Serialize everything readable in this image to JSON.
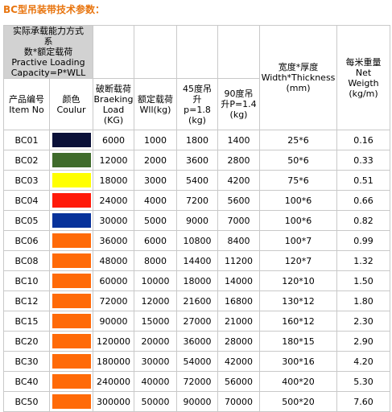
{
  "title": "BC型吊装带技术参数：",
  "header": {
    "capacity_method": [
      "实际承载能力方式",
      "系",
      "数*额定载荷",
      "Practive Loading",
      "Capacity=P*WLL"
    ],
    "width_thickness": [
      "宽度*厚度",
      "Width*Thickness",
      "(mm)"
    ],
    "weight_per_meter": [
      "每米重量",
      "Net",
      "Weigth",
      "(kg/m)"
    ],
    "item_no": [
      "产品编号",
      "Item No"
    ],
    "colour": [
      "颜色",
      "Coulur"
    ],
    "breaking_load": [
      "破断载荷",
      "Braeking",
      "Load",
      "(KG)"
    ],
    "wll": [
      "额定载荷",
      "Wll(kg)"
    ],
    "p18": [
      "45度吊",
      "升",
      "p=1.8",
      "(kg)"
    ],
    "p14": [
      "90度吊",
      "升P=1.4",
      "(kg)"
    ]
  },
  "rows": [
    {
      "item": "BC01",
      "color": "#0a1038",
      "breaking": "6000",
      "wll": "1000",
      "p18": "1800",
      "p14": "1400",
      "size": "25*6",
      "weight": "0.16"
    },
    {
      "item": "BC02",
      "color": "#3f6b2b",
      "breaking": "12000",
      "wll": "2000",
      "p18": "3600",
      "p14": "2800",
      "size": "50*6",
      "weight": "0.33"
    },
    {
      "item": "BC03",
      "color": "#ffff00",
      "breaking": "18000",
      "wll": "3000",
      "p18": "5400",
      "p14": "4200",
      "size": "75*6",
      "weight": "0.51"
    },
    {
      "item": "BC04",
      "color": "#ff1a0a",
      "breaking": "24000",
      "wll": "4000",
      "p18": "7200",
      "p14": "5600",
      "size": "100*6",
      "weight": "0.66"
    },
    {
      "item": "BC05",
      "color": "#08329a",
      "breaking": "30000",
      "wll": "5000",
      "p18": "9000",
      "p14": "7000",
      "size": "100*6",
      "weight": "0.82"
    },
    {
      "item": "BC06",
      "color": "#ff6a08",
      "breaking": "36000",
      "wll": "6000",
      "p18": "10800",
      "p14": "8400",
      "size": "100*7",
      "weight": "0.99"
    },
    {
      "item": "BC08",
      "color": "#ff6a08",
      "breaking": "48000",
      "wll": "8000",
      "p18": "14400",
      "p14": "11200",
      "size": "120*7",
      "weight": "1.32"
    },
    {
      "item": "BC10",
      "color": "#ff6a08",
      "breaking": "60000",
      "wll": "10000",
      "p18": "18000",
      "p14": "14000",
      "size": "120*10",
      "weight": "1.50"
    },
    {
      "item": "BC12",
      "color": "#ff6a08",
      "breaking": "72000",
      "wll": "12000",
      "p18": "21600",
      "p14": "16800",
      "size": "130*12",
      "weight": "1.80"
    },
    {
      "item": "BC15",
      "color": "#ff6a08",
      "breaking": "90000",
      "wll": "15000",
      "p18": "27000",
      "p14": "21000",
      "size": "160*12",
      "weight": "2.30"
    },
    {
      "item": "BC20",
      "color": "#ff6a08",
      "breaking": "120000",
      "wll": "20000",
      "p18": "36000",
      "p14": "28000",
      "size": "180*15",
      "weight": "2.90"
    },
    {
      "item": "BC30",
      "color": "#ff6a08",
      "breaking": "180000",
      "wll": "30000",
      "p18": "54000",
      "p14": "42000",
      "size": "300*16",
      "weight": "4.20"
    },
    {
      "item": "BC40",
      "color": "#ff6a08",
      "breaking": "240000",
      "wll": "40000",
      "p18": "72000",
      "p14": "56000",
      "size": "400*20",
      "weight": "5.30"
    },
    {
      "item": "BC50",
      "color": "#ff6a08",
      "breaking": "300000",
      "wll": "50000",
      "p18": "90000",
      "p14": "70000",
      "size": "500*20",
      "weight": "7.60"
    }
  ]
}
